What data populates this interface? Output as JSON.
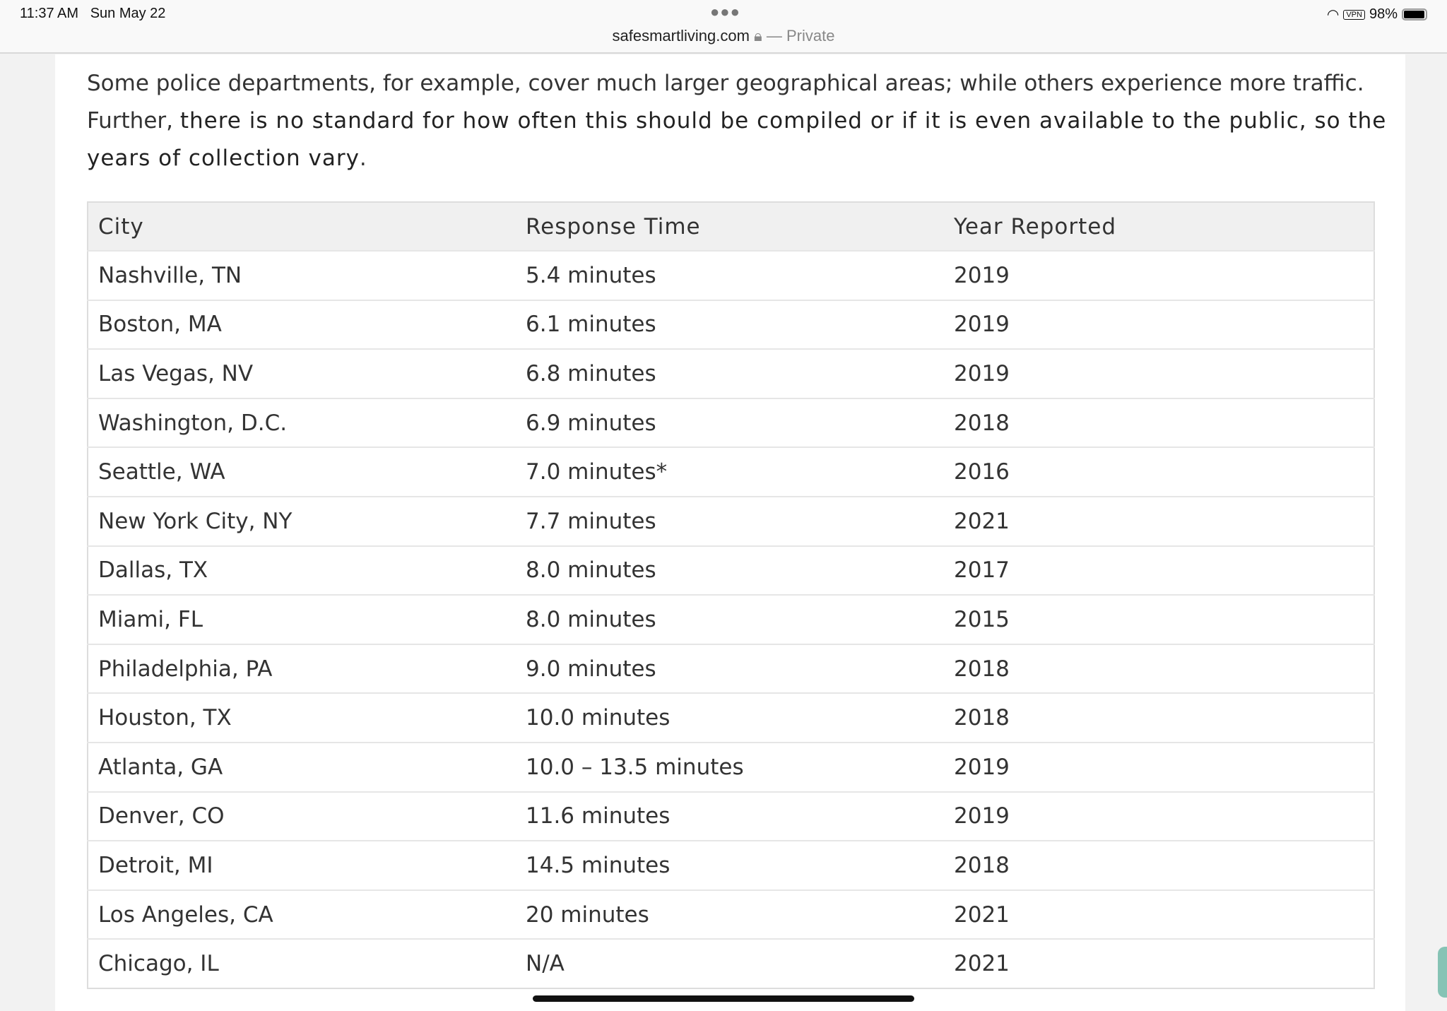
{
  "status_bar": {
    "time": "11:37 AM",
    "date": "Sun May 22",
    "battery": "98%",
    "vpn": "VPN"
  },
  "browser": {
    "url": "safesmartliving.com",
    "private_label": "— Private"
  },
  "article": {
    "intro_plain": "Some police departments, for example, cover much larger geographical areas; while others experience more traffic. Further, ",
    "intro_bold": "there is no standard for how often this should be compiled or if it is even available to the public, so the years of collection vary",
    "intro_end": "."
  },
  "table": {
    "headers": [
      "City",
      "Response Time",
      "Year Reported"
    ],
    "rows": [
      [
        "Nashville, TN",
        "5.4 minutes",
        "2019"
      ],
      [
        "Boston, MA",
        "6.1 minutes",
        "2019"
      ],
      [
        "Las Vegas, NV",
        "6.8 minutes",
        "2019"
      ],
      [
        "Washington, D.C.",
        "6.9 minutes",
        "2018"
      ],
      [
        "Seattle, WA",
        "7.0 minutes*",
        "2016"
      ],
      [
        "New York City, NY",
        "7.7 minutes",
        "2021"
      ],
      [
        "Dallas, TX",
        "8.0 minutes",
        "2017"
      ],
      [
        "Miami, FL",
        "8.0 minutes",
        "2015"
      ],
      [
        "Philadelphia, PA",
        "9.0 minutes",
        "2018"
      ],
      [
        "Houston, TX",
        "10.0 minutes",
        "2018"
      ],
      [
        "Atlanta, GA",
        "10.0 – 13.5 minutes",
        "2019"
      ],
      [
        "Denver, CO",
        "11.6 minutes",
        "2019"
      ],
      [
        "Detroit, MI",
        "14.5 minutes",
        "2018"
      ],
      [
        "Los Angeles, CA",
        "20 minutes",
        "2021"
      ],
      [
        "Chicago, IL",
        "N/A",
        "2021"
      ]
    ]
  },
  "colors": {
    "scroll_tab": "#86c3b5",
    "header_bg": "#f0f0f0"
  }
}
